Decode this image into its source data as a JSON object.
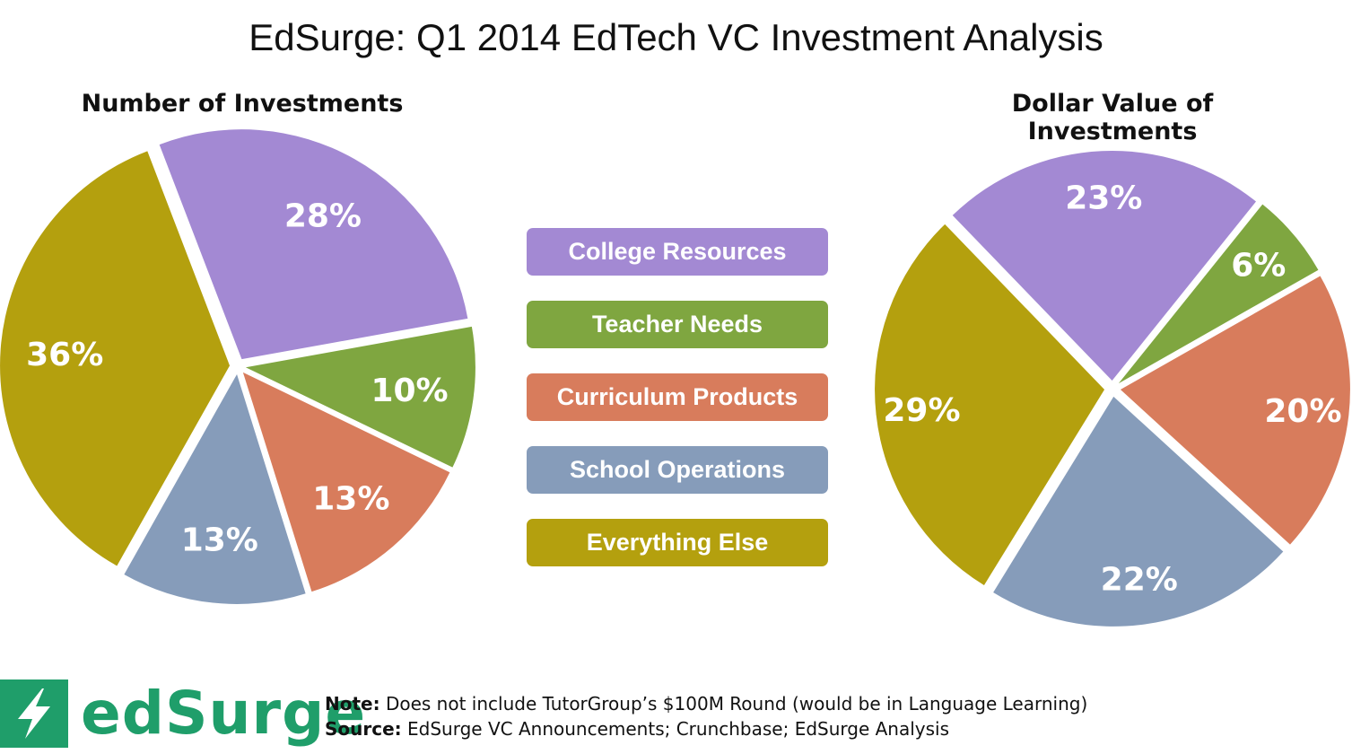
{
  "title": "EdSurge: Q1 2014 EdTech VC Investment Analysis",
  "legend": [
    {
      "label": "College Resources",
      "color": "#a389d3"
    },
    {
      "label": "Teacher Needs",
      "color": "#7fa640"
    },
    {
      "label": "Curriculum Products",
      "color": "#d87c5c"
    },
    {
      "label": "School Operations",
      "color": "#869cba"
    },
    {
      "label": "Everything Else",
      "color": "#b4a00e"
    }
  ],
  "chart_data": [
    {
      "type": "pie",
      "title": "Number of Investments",
      "categories": [
        "College Resources",
        "Teacher Needs",
        "Curriculum Products",
        "School Operations",
        "Everything Else"
      ],
      "values": [
        28,
        10,
        13,
        13,
        36
      ],
      "labels": [
        "28%",
        "10%",
        "13%",
        "13%",
        "36%"
      ],
      "colors": [
        "#a389d3",
        "#7fa640",
        "#d87c5c",
        "#869cba",
        "#b4a00e"
      ]
    },
    {
      "type": "pie",
      "title": "Dollar Value of Investments",
      "categories": [
        "College Resources",
        "Teacher Needs",
        "Curriculum Products",
        "School Operations",
        "Everything Else"
      ],
      "values": [
        23,
        6,
        20,
        22,
        29
      ],
      "labels": [
        "23%",
        "6%",
        "20%",
        "22%",
        "29%"
      ],
      "colors": [
        "#a389d3",
        "#7fa640",
        "#d87c5c",
        "#869cba",
        "#b4a00e"
      ]
    }
  ],
  "logo": {
    "text": "edSurge",
    "icon": "lightning-bolt-icon"
  },
  "footer": {
    "note_label": "Note:",
    "note_text": " Does not include TutorGroup’s $100M Round (would be in Language Learning)",
    "source_label": "Source:",
    "source_text": " EdSurge VC Announcements;  Crunchbase;  EdSurge Analysis"
  }
}
